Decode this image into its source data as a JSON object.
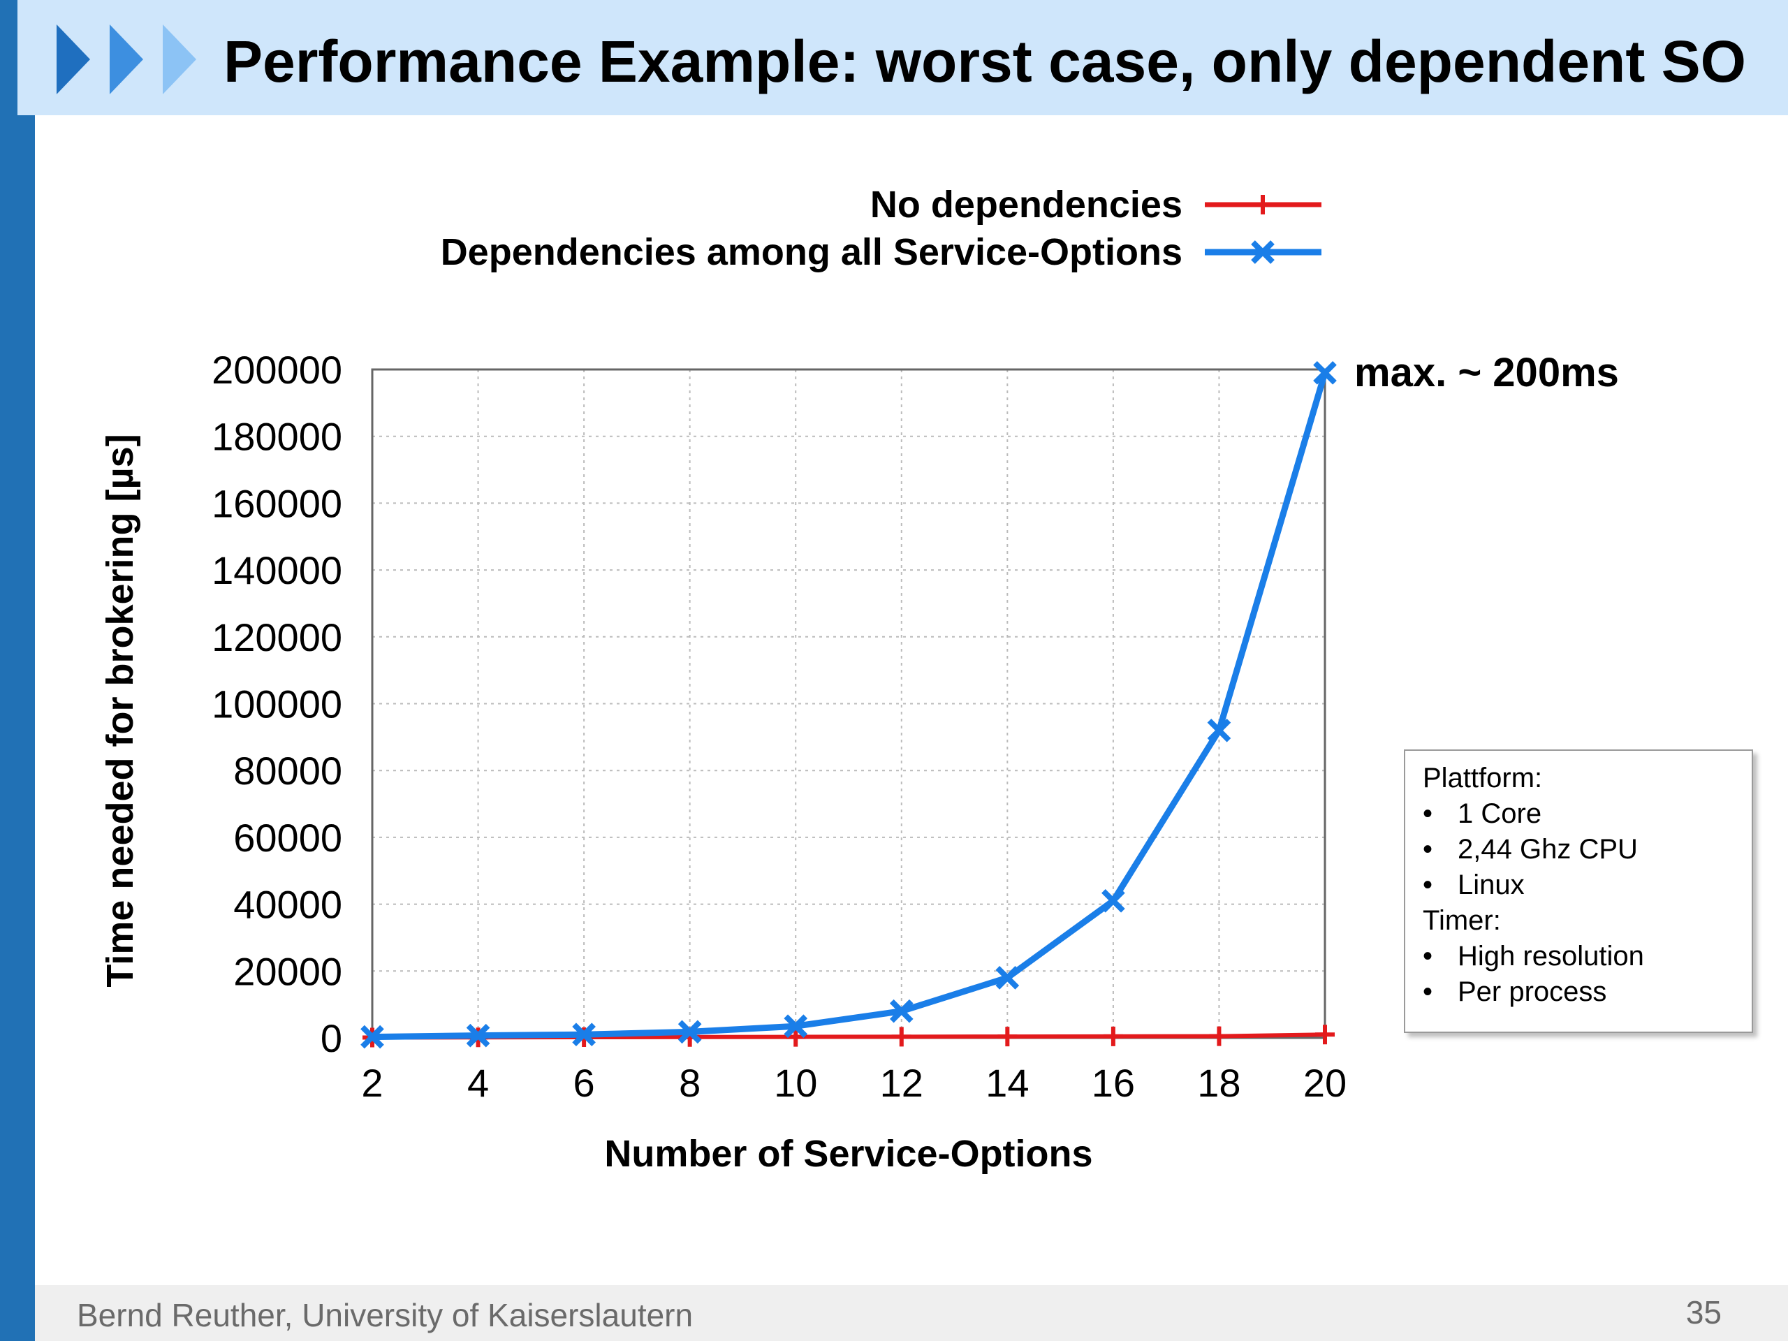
{
  "slide": {
    "title": "Performance Example: worst case, only dependent SO",
    "footer": "Bernd Reuther, University of Kaiserslautern",
    "page_number": "35"
  },
  "info_box": {
    "platform_heading": "Plattform:",
    "platform_items": [
      "1 Core",
      "2,44 Ghz CPU",
      "Linux"
    ],
    "timer_heading": "Timer:",
    "timer_items": [
      "High resolution",
      "Per process"
    ]
  },
  "chart_data": {
    "type": "line",
    "title": "",
    "xlabel": "Number of Service-Options",
    "ylabel": "Time needed for brokering [µs]",
    "x": [
      2,
      4,
      6,
      8,
      10,
      12,
      14,
      16,
      18,
      20
    ],
    "xlim": [
      2,
      20
    ],
    "ylim": [
      0,
      200000
    ],
    "xticks": [
      2,
      4,
      6,
      8,
      10,
      12,
      14,
      16,
      18,
      20
    ],
    "yticks": [
      0,
      20000,
      40000,
      60000,
      80000,
      100000,
      120000,
      140000,
      160000,
      180000,
      200000
    ],
    "grid": true,
    "legend_position": "top",
    "annotation": {
      "text": "max. ~ 200ms",
      "x": 20,
      "y": 200000
    },
    "series": [
      {
        "name": "No dependencies",
        "color": "#e31a1c",
        "marker": "plus",
        "values": [
          100,
          150,
          200,
          250,
          300,
          350,
          400,
          450,
          500,
          1000
        ]
      },
      {
        "name": "Dependencies among all Service-Options",
        "color": "#1a7ee8",
        "marker": "cross",
        "values": [
          300,
          700,
          1000,
          1800,
          3500,
          8000,
          18000,
          41000,
          92000,
          199000
        ]
      }
    ]
  }
}
